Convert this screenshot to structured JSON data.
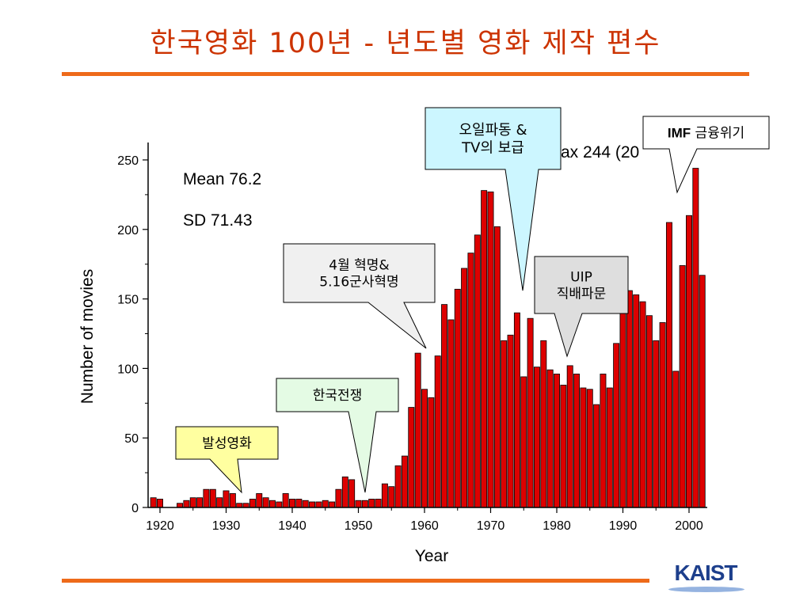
{
  "page": {
    "title": "한국영화 100년 - 년도별 영화 제작 편수",
    "logo_text": "KAIST"
  },
  "stats": {
    "mean": "Mean 76.2",
    "sd": "SD 71.43",
    "max_partial": "ax 244 (20"
  },
  "callouts": [
    {
      "id": "silent",
      "lines": [
        "발성영화"
      ],
      "fill": "#ffffa0"
    },
    {
      "id": "korean-war",
      "lines": [
        "한국전쟁"
      ],
      "fill": "#e4fbe4"
    },
    {
      "id": "april-revolution",
      "lines": [
        "4월 혁명&",
        "5.16군사혁명"
      ],
      "fill": "#f0f0f0"
    },
    {
      "id": "oil-shock",
      "lines": [
        "오일파동 &",
        "TV의 보급"
      ],
      "fill": "#ccf6ff"
    },
    {
      "id": "uip",
      "lines": [
        "UIP",
        "직배파문"
      ],
      "fill": "#dedede"
    },
    {
      "id": "imf",
      "lines": [
        "IMF 금융위기"
      ],
      "bold_prefix": "IMF",
      "rest": " 금융위기",
      "fill": "#ffffff"
    }
  ],
  "chart_data": {
    "type": "bar",
    "xlabel": "Year",
    "ylabel": "Number of movies",
    "xlim": [
      1918,
      2003
    ],
    "ylim": [
      0,
      250
    ],
    "xticks": [
      1920,
      1930,
      1940,
      1950,
      1960,
      1970,
      1980,
      1990,
      2000
    ],
    "yticks": [
      0,
      50,
      100,
      150,
      200,
      250
    ],
    "bar_color": "#dd0000",
    "x": [
      1919,
      1920,
      1921,
      1922,
      1923,
      1924,
      1925,
      1926,
      1927,
      1928,
      1929,
      1930,
      1931,
      1932,
      1933,
      1934,
      1935,
      1936,
      1937,
      1938,
      1939,
      1940,
      1941,
      1942,
      1943,
      1944,
      1945,
      1946,
      1947,
      1948,
      1949,
      1950,
      1951,
      1952,
      1953,
      1954,
      1955,
      1956,
      1957,
      1958,
      1959,
      1960,
      1961,
      1962,
      1963,
      1964,
      1965,
      1966,
      1967,
      1968,
      1969,
      1970,
      1971,
      1972,
      1973,
      1974,
      1975,
      1976,
      1977,
      1978,
      1979,
      1980,
      1981,
      1982,
      1983,
      1984,
      1985,
      1986,
      1987,
      1988,
      1989,
      1990,
      1991,
      1992,
      1993,
      1994,
      1995,
      1996,
      1997,
      1998,
      1999,
      2000,
      2001,
      2002
    ],
    "values": [
      7,
      6,
      0,
      0,
      3,
      5,
      7,
      7,
      13,
      13,
      7,
      12,
      10,
      3,
      3,
      6,
      10,
      7,
      5,
      4,
      10,
      6,
      6,
      5,
      4,
      4,
      5,
      4,
      13,
      22,
      20,
      5,
      5,
      6,
      6,
      17,
      15,
      30,
      37,
      72,
      111,
      85,
      79,
      109,
      146,
      135,
      157,
      172,
      183,
      196,
      228,
      227,
      202,
      120,
      124,
      140,
      94,
      136,
      101,
      120,
      99,
      96,
      88,
      102,
      96,
      86,
      85,
      74,
      96,
      86,
      118,
      156,
      156,
      153,
      148,
      138,
      120,
      133,
      205,
      98,
      174,
      210,
      244,
      167
    ]
  }
}
